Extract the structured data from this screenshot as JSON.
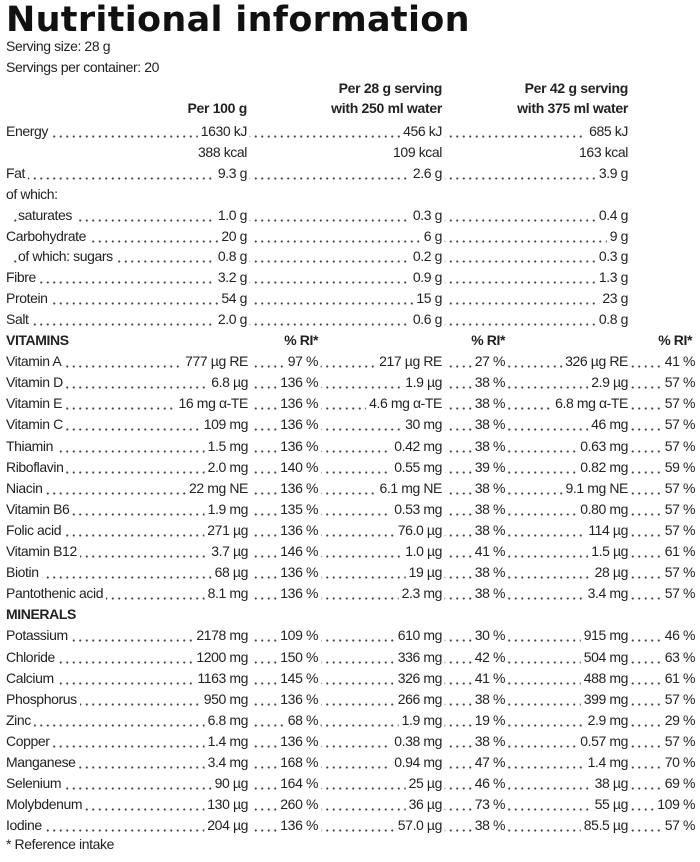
{
  "title": "Nutritional information",
  "serving_size": "Serving size: 28 g",
  "servings_per_container": "Servings per container: 20",
  "column_headers": {
    "per100": "Per 100 g",
    "per28_line1": "Per 28 g serving",
    "per28_line2": "with 250 ml water",
    "per42_line1": "Per 42 g serving",
    "per42_line2": "with 375 ml water"
  },
  "nutrition": [
    {
      "label": "Energy",
      "v100": "1630 kJ",
      "v28": "456 kJ",
      "v42": "685 kJ",
      "dots": true
    },
    {
      "label": "",
      "v100": "388 kcal",
      "v28": "109 kcal",
      "v42": "163 kcal",
      "dots": false
    },
    {
      "label": "Fat",
      "v100": "9.3 g",
      "v28": "2.6 g",
      "v42": "3.9 g",
      "dots": true
    },
    {
      "label": "of which:",
      "v100": "",
      "v28": "",
      "v42": "",
      "dots": false
    },
    {
      "label": "saturates",
      "v100": "1.0 g",
      "v28": "0.3 g",
      "v42": "0.4 g",
      "dots": true,
      "indent": true
    },
    {
      "label": "Carbohydrate",
      "v100": "20 g",
      "v28": "6 g",
      "v42": "9 g",
      "dots": true
    },
    {
      "label": "of which: sugars",
      "v100": "0.8 g",
      "v28": "0.2 g",
      "v42": "0.3 g",
      "dots": true,
      "indent": true
    },
    {
      "label": "Fibre",
      "v100": "3.2 g",
      "v28": "0.9 g",
      "v42": "1.3 g",
      "dots": true
    },
    {
      "label": "Protein",
      "v100": "54 g",
      "v28": "15 g",
      "v42": "23 g",
      "dots": true
    },
    {
      "label": "Salt",
      "v100": "2.0 g",
      "v28": "0.6 g",
      "v42": "0.8 g",
      "dots": true
    }
  ],
  "ri_header": "% RI*",
  "vitamins": {
    "heading": "VITAMINS",
    "rows": [
      {
        "label": "Vitamin A",
        "v100": "777 µg RE",
        "p100": "97 %",
        "v28": "217 µg RE",
        "p28": "27 %",
        "v42": "326 µg RE",
        "p42": "41 %"
      },
      {
        "label": "Vitamin D",
        "v100": "6.8 µg",
        "p100": "136 %",
        "v28": "1.9 µg",
        "p28": "38 %",
        "v42": "2.9 µg",
        "p42": "57 %"
      },
      {
        "label": "Vitamin E",
        "v100": "16 mg α-TE",
        "p100": "136 %",
        "v28": "4.6 mg α-TE",
        "p28": "38 %",
        "v42": "6.8 mg α-TE",
        "p42": "57 %"
      },
      {
        "label": "Vitamin C",
        "v100": "109 mg",
        "p100": "136 %",
        "v28": "30 mg",
        "p28": "38 %",
        "v42": "46 mg",
        "p42": "57 %"
      },
      {
        "label": "Thiamin",
        "v100": "1.5 mg",
        "p100": "136 %",
        "v28": "0.42 mg",
        "p28": "38 %",
        "v42": "0.63 mg",
        "p42": "57 %"
      },
      {
        "label": "Riboflavin",
        "v100": "2.0 mg",
        "p100": "140 %",
        "v28": "0.55 mg",
        "p28": "39 %",
        "v42": "0.82 mg",
        "p42": "59 %"
      },
      {
        "label": "Niacin",
        "v100": "22 mg NE",
        "p100": "136 %",
        "v28": "6.1 mg NE",
        "p28": "38 %",
        "v42": "9.1 mg NE",
        "p42": "57 %"
      },
      {
        "label": "Vitamin B6",
        "v100": "1.9 mg",
        "p100": "135 %",
        "v28": "0.53 mg",
        "p28": "38 %",
        "v42": "0.80 mg",
        "p42": "57 %"
      },
      {
        "label": "Folic acid",
        "v100": "271 µg",
        "p100": "136 %",
        "v28": "76.0 µg",
        "p28": "38 %",
        "v42": "114 µg",
        "p42": "57 %"
      },
      {
        "label": "Vitamin B12",
        "v100": "3.7 µg",
        "p100": "146 %",
        "v28": "1.0 µg",
        "p28": "41 %",
        "v42": "1.5 µg",
        "p42": "61 %"
      },
      {
        "label": "Biotin",
        "v100": "68 µg",
        "p100": "136 %",
        "v28": "19 µg",
        "p28": "38 %",
        "v42": "28 µg",
        "p42": "57 %"
      },
      {
        "label": "Pantothenic acid",
        "v100": "8.1 mg",
        "p100": "136 %",
        "v28": "2.3 mg",
        "p28": "38 %",
        "v42": "3.4 mg",
        "p42": "57 %"
      }
    ]
  },
  "minerals": {
    "heading": "MINERALS",
    "rows": [
      {
        "label": "Potassium",
        "v100": "2178 mg",
        "p100": "109 %",
        "v28": "610 mg",
        "p28": "30 %",
        "v42": "915 mg",
        "p42": "46 %"
      },
      {
        "label": "Chloride",
        "v100": "1200 mg",
        "p100": "150 %",
        "v28": "336 mg",
        "p28": "42 %",
        "v42": "504 mg",
        "p42": "63 %"
      },
      {
        "label": "Calcium",
        "v100": "1163 mg",
        "p100": "145 %",
        "v28": "326 mg",
        "p28": "41 %",
        "v42": "488 mg",
        "p42": "61 %"
      },
      {
        "label": "Phosphorus",
        "v100": "950 mg",
        "p100": "136 %",
        "v28": "266 mg",
        "p28": "38 %",
        "v42": "399 mg",
        "p42": "57 %"
      },
      {
        "label": "Zinc",
        "v100": "6.8 mg",
        "p100": "68 %",
        "v28": "1.9 mg",
        "p28": "19 %",
        "v42": "2.9 mg",
        "p42": "29 %"
      },
      {
        "label": "Copper",
        "v100": "1.4 mg",
        "p100": "136 %",
        "v28": "0.38 mg",
        "p28": "38 %",
        "v42": "0.57 mg",
        "p42": "57 %"
      },
      {
        "label": "Manganese",
        "v100": "3.4 mg",
        "p100": "168 %",
        "v28": "0.94 mg",
        "p28": "47 %",
        "v42": "1.4 mg",
        "p42": "70 %"
      },
      {
        "label": "Selenium",
        "v100": "90 µg",
        "p100": "164 %",
        "v28": "25 µg",
        "p28": "46 %",
        "v42": "38 µg",
        "p42": "69 %"
      },
      {
        "label": "Molybdenum",
        "v100": "130 µg",
        "p100": "260 %",
        "v28": "36 µg",
        "p28": "73 %",
        "v42": "55 µg",
        "p42": "109 %"
      },
      {
        "label": "Iodine",
        "v100": "204 µg",
        "p100": "136 %",
        "v28": "57.0 µg",
        "p28": "38 %",
        "v42": "85.5 µg",
        "p42": "57 %"
      }
    ]
  },
  "footnote": "* Reference intake"
}
